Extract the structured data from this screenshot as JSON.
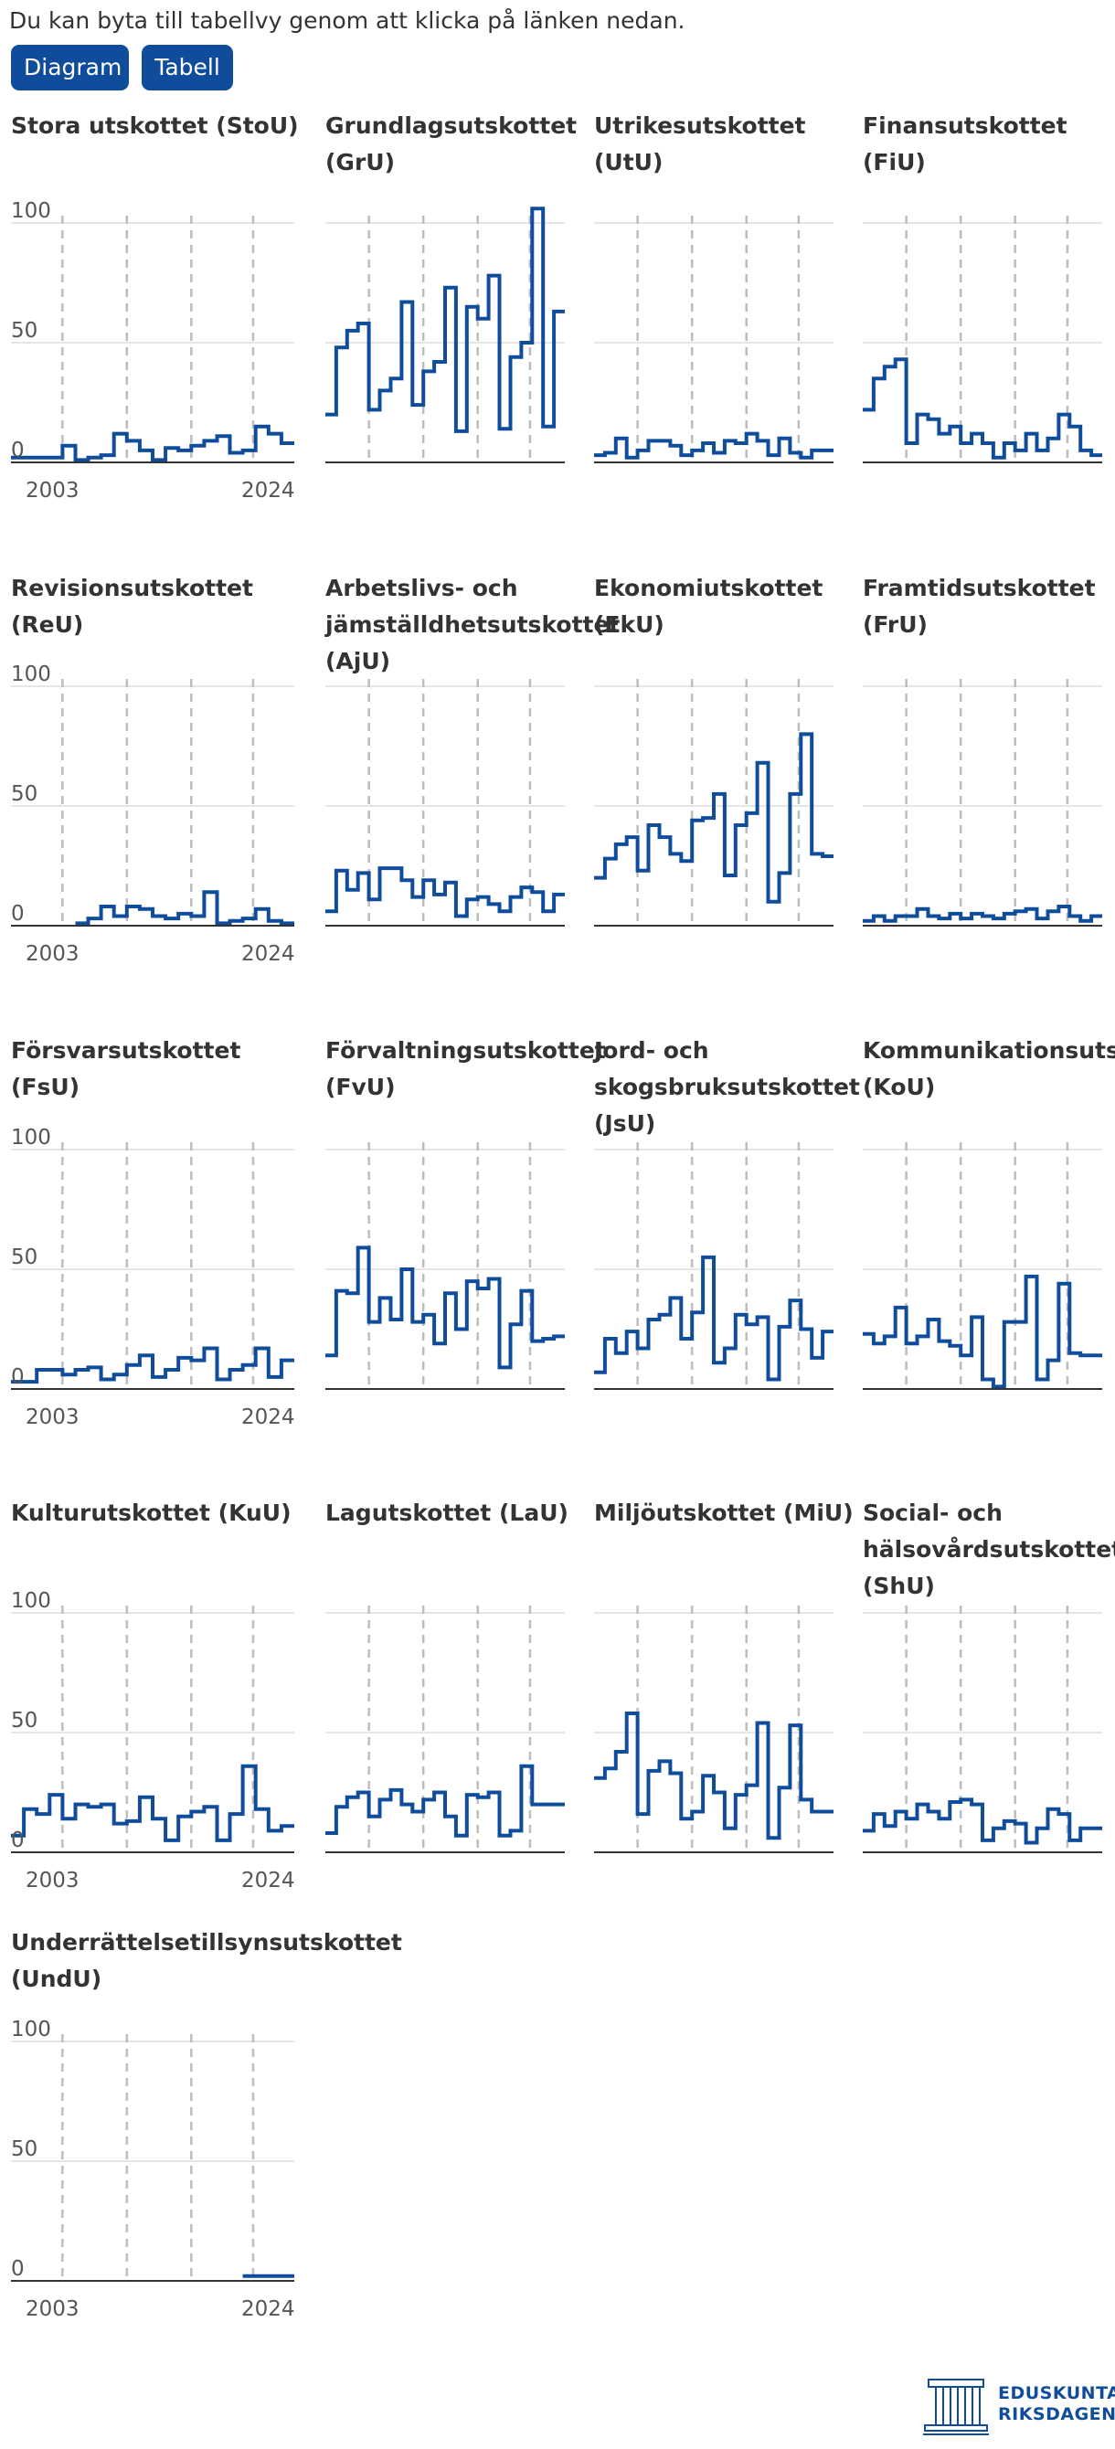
{
  "intro_text": "Du kan byta till tabellvy genom att klicka på länken nedan.",
  "buttons": {
    "diagram": "Diagram",
    "table": "Tabell"
  },
  "logo": {
    "line1": "EDUSKUNTA",
    "line2": "RIKSDAGEN"
  },
  "colors": {
    "line": "#0f4c9c",
    "button": "#0f4c9c",
    "grid": "#dddddd",
    "dash": "#bdbdbd",
    "axis": "#333333"
  },
  "chart_data": {
    "type": "line",
    "step": true,
    "x_start": 2003,
    "x_end": 2024,
    "ylim": [
      0,
      100
    ],
    "yticks": [
      0,
      50,
      100
    ],
    "xticks": [
      "2003",
      "2024"
    ],
    "series": [
      {
        "title": "Stora utskottet (StoU)",
        "values": [
          2,
          2,
          2,
          2,
          7,
          1,
          2,
          3,
          12,
          9,
          5,
          1,
          6,
          5,
          7,
          9,
          11,
          4,
          5,
          15,
          12,
          8
        ]
      },
      {
        "title": "Grundlagsutskottet (GrU)",
        "values": [
          20,
          48,
          55,
          58,
          22,
          30,
          35,
          67,
          24,
          38,
          42,
          73,
          13,
          65,
          60,
          78,
          14,
          44,
          50,
          106,
          15,
          63
        ]
      },
      {
        "title": "Utrikesutskottet (UtU)",
        "values": [
          3,
          4,
          10,
          2,
          5,
          9,
          9,
          7,
          3,
          5,
          8,
          4,
          9,
          8,
          12,
          9,
          3,
          10,
          4,
          2,
          5,
          5
        ]
      },
      {
        "title": "Finansutskottet (FiU)",
        "values": [
          22,
          35,
          40,
          43,
          8,
          20,
          18,
          12,
          15,
          8,
          12,
          8,
          2,
          8,
          5,
          12,
          5,
          10,
          20,
          15,
          5,
          3
        ]
      },
      {
        "title": "Revisionsutskottet (ReU)",
        "values": [
          null,
          null,
          null,
          null,
          null,
          1,
          3,
          8,
          4,
          8,
          7,
          4,
          3,
          5,
          4,
          14,
          1,
          2,
          3,
          7,
          2,
          1
        ]
      },
      {
        "title": "Arbetslivs- och jämställdhetsutskottet (AjU)",
        "values": [
          6,
          23,
          15,
          22,
          11,
          24,
          24,
          19,
          12,
          19,
          13,
          18,
          4,
          11,
          12,
          9,
          6,
          12,
          16,
          14,
          6,
          13
        ]
      },
      {
        "title": "Ekonomiutskottet (EkU)",
        "values": [
          20,
          28,
          34,
          37,
          23,
          42,
          37,
          30,
          27,
          44,
          45,
          55,
          21,
          42,
          47,
          68,
          10,
          22,
          55,
          80,
          30,
          29
        ]
      },
      {
        "title": "Framtidsutskottet (FrU)",
        "values": [
          2,
          4,
          2,
          4,
          4,
          7,
          4,
          3,
          5,
          3,
          5,
          4,
          3,
          5,
          6,
          7,
          3,
          6,
          8,
          4,
          2,
          4
        ]
      },
      {
        "title": "Försvarsutskottet (FsU)",
        "values": [
          3,
          3,
          8,
          8,
          6,
          8,
          9,
          4,
          6,
          10,
          14,
          5,
          8,
          13,
          12,
          17,
          4,
          8,
          10,
          17,
          5,
          12
        ]
      },
      {
        "title": "Förvaltningsutskottet (FvU)",
        "values": [
          14,
          41,
          40,
          59,
          28,
          38,
          29,
          50,
          28,
          31,
          19,
          40,
          25,
          45,
          42,
          46,
          9,
          27,
          41,
          20,
          21,
          22
        ]
      },
      {
        "title": "Jord- och skogsbruksutskottet (JsU)",
        "values": [
          7,
          21,
          15,
          24,
          17,
          29,
          31,
          38,
          21,
          32,
          55,
          11,
          17,
          31,
          27,
          30,
          4,
          26,
          37,
          25,
          13,
          24
        ]
      },
      {
        "title": "Kommunikationsutskottet (KoU)",
        "values": [
          23,
          19,
          22,
          34,
          19,
          22,
          29,
          20,
          18,
          14,
          30,
          4,
          1,
          28,
          28,
          47,
          4,
          12,
          44,
          15,
          14,
          14
        ]
      },
      {
        "title": "Kulturutskottet (KuU)",
        "values": [
          7,
          18,
          16,
          24,
          14,
          20,
          19,
          20,
          12,
          13,
          23,
          14,
          5,
          15,
          17,
          19,
          5,
          16,
          36,
          18,
          9,
          11
        ]
      },
      {
        "title": "Lagutskottet (LaU)",
        "values": [
          8,
          19,
          23,
          25,
          15,
          22,
          26,
          20,
          17,
          22,
          25,
          15,
          7,
          24,
          23,
          25,
          7,
          9,
          36,
          20,
          20,
          20
        ]
      },
      {
        "title": "Miljöutskottet (MiU)",
        "values": [
          31,
          35,
          42,
          58,
          16,
          34,
          38,
          33,
          14,
          17,
          32,
          25,
          10,
          24,
          28,
          54,
          6,
          27,
          53,
          22,
          17,
          17
        ]
      },
      {
        "title": "Social- och hälsovårdsutskottet (ShU)",
        "values": [
          9,
          16,
          11,
          17,
          14,
          20,
          17,
          14,
          21,
          22,
          20,
          5,
          10,
          13,
          12,
          4,
          10,
          18,
          16,
          5,
          10,
          10
        ]
      },
      {
        "title": "Underrättelsetillsynsutskottet (UndU)",
        "values": [
          null,
          null,
          null,
          null,
          null,
          null,
          null,
          null,
          null,
          null,
          null,
          null,
          null,
          null,
          null,
          null,
          null,
          null,
          2,
          2,
          2,
          2
        ]
      }
    ]
  }
}
